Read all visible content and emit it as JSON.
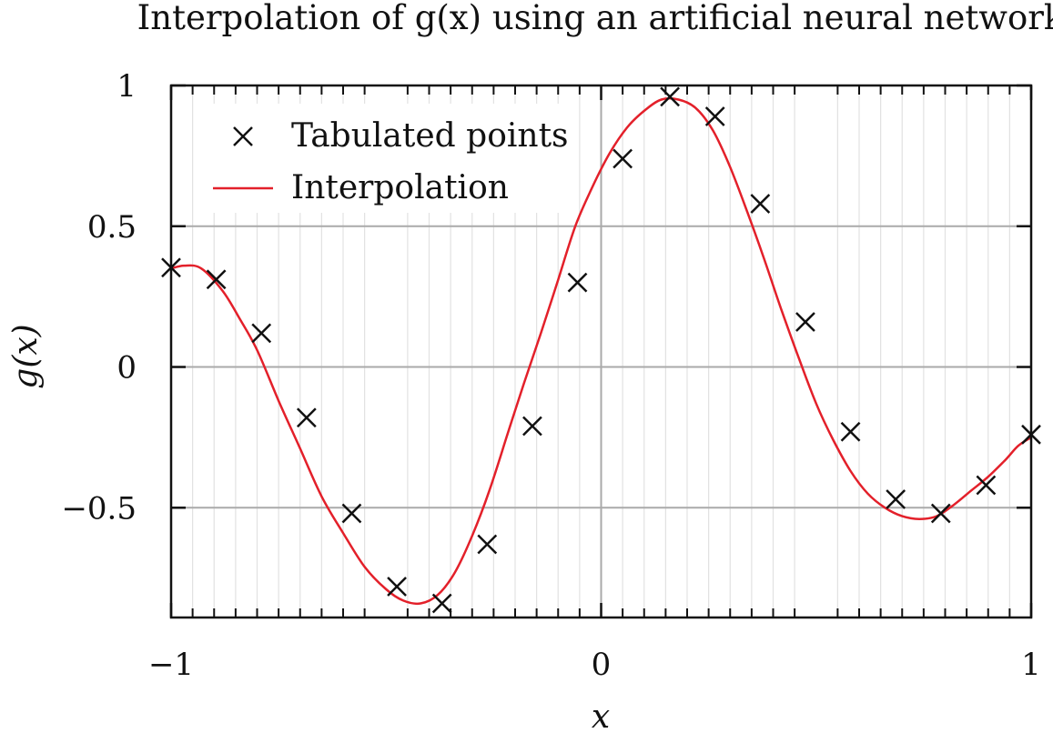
{
  "chart_data": {
    "type": "line",
    "title": "Interpolation of g(x) using an artificial neural network",
    "xlabel": "x",
    "ylabel": "g(x)",
    "xlim": [
      -1,
      1
    ],
    "ylim": [
      -0.89,
      1
    ],
    "x_ticks": [
      -1,
      0,
      1
    ],
    "x_tick_labels": [
      "−1",
      "0",
      "1"
    ],
    "y_ticks": [
      -0.5,
      0,
      0.5,
      1
    ],
    "y_tick_labels": [
      "−0.5",
      "0",
      "0.5",
      "1"
    ],
    "grid": true,
    "legend_position": "top-left",
    "series": [
      {
        "name": "Tabulated points",
        "style": "markers",
        "marker": "x",
        "color": "#111111",
        "x": [
          -1.0,
          -0.895,
          -0.79,
          -0.685,
          -0.58,
          -0.475,
          -0.37,
          -0.265,
          -0.16,
          -0.055,
          0.05,
          0.16,
          0.265,
          0.37,
          0.475,
          0.58,
          0.685,
          0.79,
          0.895,
          1.0
        ],
        "y": [
          0.353,
          0.311,
          0.12,
          -0.18,
          -0.52,
          -0.78,
          -0.84,
          -0.63,
          -0.21,
          0.3,
          0.74,
          0.96,
          0.89,
          0.58,
          0.16,
          -0.23,
          -0.47,
          -0.52,
          -0.42,
          -0.24
        ]
      },
      {
        "name": "Interpolation",
        "style": "line",
        "color": "#e3202a",
        "x": [
          -1.0,
          -0.97,
          -0.93,
          -0.88,
          -0.84,
          -0.8,
          -0.75,
          -0.7,
          -0.65,
          -0.6,
          -0.55,
          -0.5,
          -0.46,
          -0.42,
          -0.38,
          -0.34,
          -0.3,
          -0.26,
          -0.22,
          -0.18,
          -0.14,
          -0.1,
          -0.06,
          -0.02,
          0.02,
          0.06,
          0.1,
          0.14,
          0.18,
          0.22,
          0.26,
          0.3,
          0.34,
          0.38,
          0.42,
          0.46,
          0.5,
          0.54,
          0.58,
          0.62,
          0.66,
          0.7,
          0.74,
          0.78,
          0.82,
          0.86,
          0.9,
          0.94,
          0.97,
          1.0
        ],
        "y": [
          0.35,
          0.36,
          0.35,
          0.27,
          0.17,
          0.06,
          -0.12,
          -0.29,
          -0.46,
          -0.59,
          -0.71,
          -0.79,
          -0.83,
          -0.84,
          -0.81,
          -0.73,
          -0.6,
          -0.44,
          -0.25,
          -0.06,
          0.12,
          0.31,
          0.5,
          0.64,
          0.76,
          0.85,
          0.91,
          0.95,
          0.95,
          0.92,
          0.84,
          0.71,
          0.55,
          0.38,
          0.2,
          0.03,
          -0.13,
          -0.26,
          -0.37,
          -0.45,
          -0.5,
          -0.53,
          -0.54,
          -0.53,
          -0.49,
          -0.44,
          -0.39,
          -0.33,
          -0.28,
          -0.25
        ]
      }
    ]
  }
}
